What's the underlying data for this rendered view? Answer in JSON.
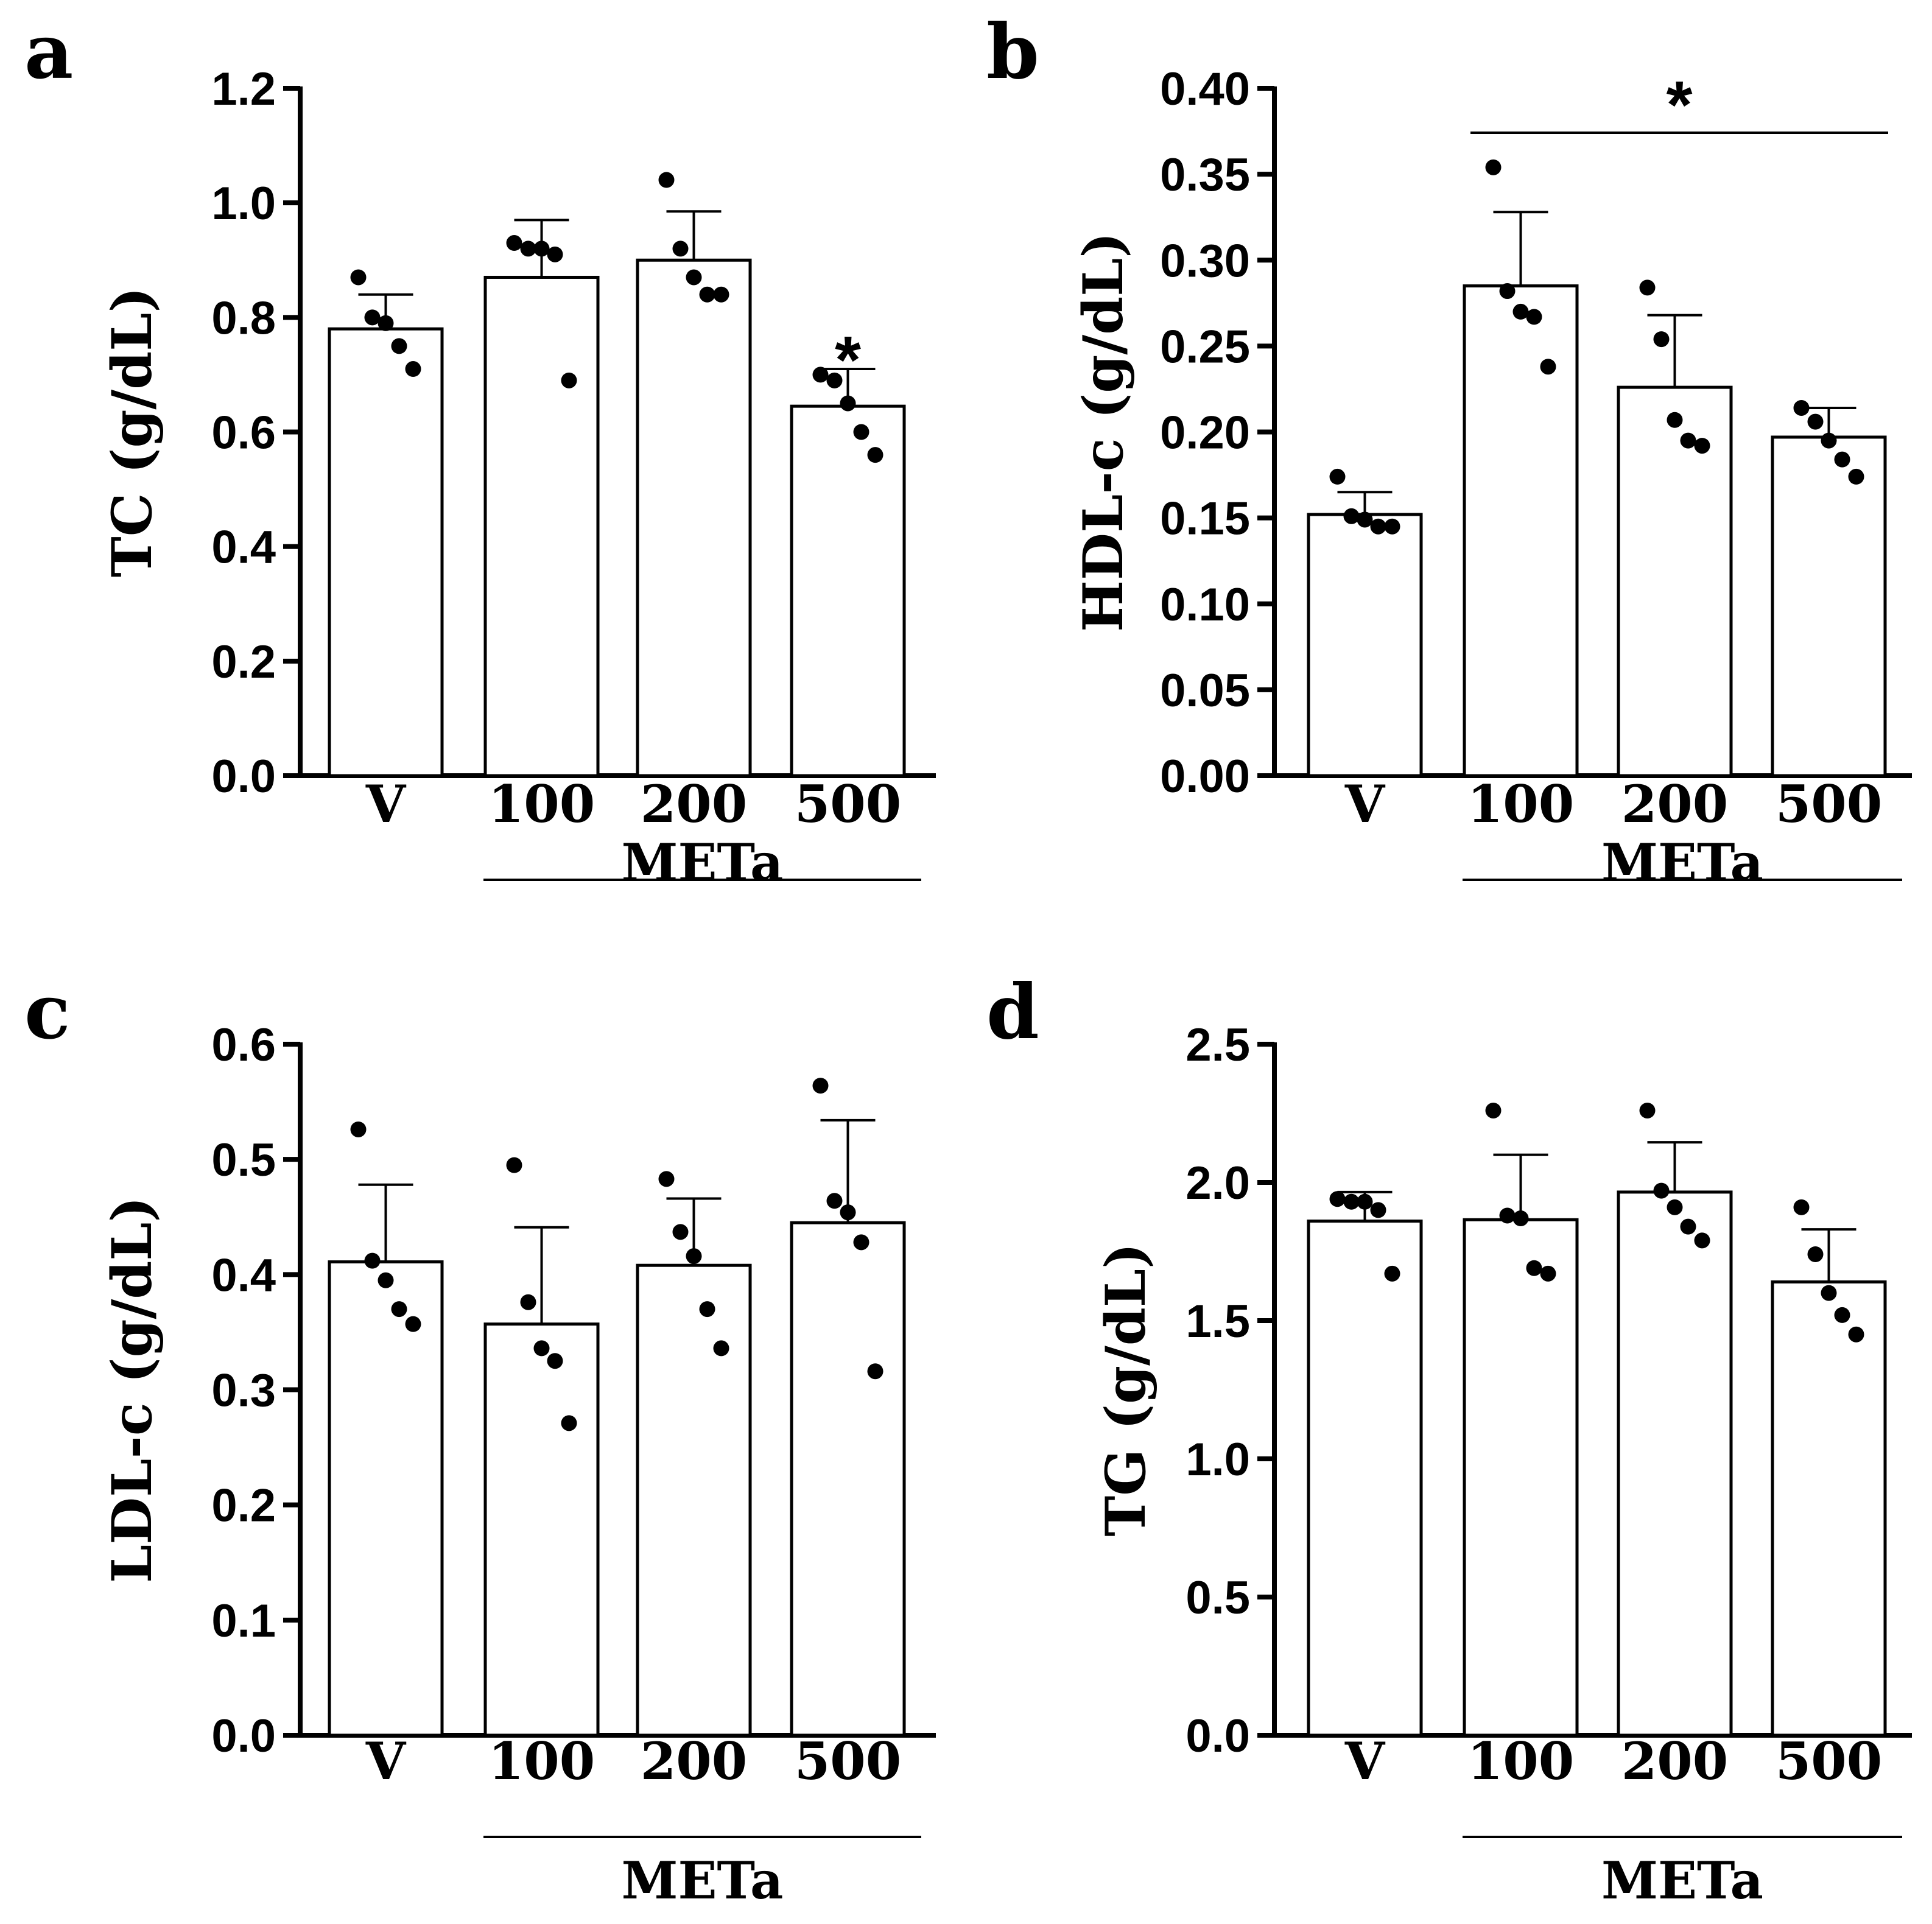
{
  "chart_data": [
    {
      "panel": "a",
      "type": "bar",
      "ylabel": "TC (g/dL)",
      "ylim": [
        0,
        1.2
      ],
      "yticks": [
        0.0,
        0.2,
        0.4,
        0.6,
        0.8,
        1.0,
        1.2
      ],
      "ytick_labels": [
        "0.0",
        "0.2",
        "0.4",
        "0.6",
        "0.8",
        "1.0",
        "1.2"
      ],
      "categories": [
        "V",
        "100",
        "200",
        "500"
      ],
      "group_label": "METa",
      "values": [
        0.78,
        0.87,
        0.9,
        0.645
      ],
      "error": [
        0.06,
        0.1,
        0.085,
        0.065
      ],
      "points": [
        [
          0.87,
          0.8,
          0.79,
          0.75,
          0.71
        ],
        [
          0.93,
          0.92,
          0.92,
          0.91,
          0.69
        ],
        [
          1.04,
          0.92,
          0.87,
          0.84,
          0.84
        ],
        [
          0.7,
          0.69,
          0.65,
          0.6,
          0.56
        ]
      ],
      "annotations": [
        {
          "text": "*",
          "category": 3
        }
      ]
    },
    {
      "panel": "b",
      "type": "bar",
      "ylabel": "HDL-c (g/dL)",
      "ylim": [
        0,
        0.4
      ],
      "yticks": [
        0.0,
        0.05,
        0.1,
        0.15,
        0.2,
        0.25,
        0.3,
        0.35,
        0.4
      ],
      "ytick_labels": [
        "0.00",
        "0.05",
        "0.10",
        "0.15",
        "0.20",
        "0.25",
        "0.30",
        "0.35",
        "0.40"
      ],
      "categories": [
        "V",
        "100",
        "200",
        "500"
      ],
      "group_label": "METa",
      "values": [
        0.152,
        0.285,
        0.226,
        0.197
      ],
      "error": [
        0.013,
        0.043,
        0.042,
        0.017
      ],
      "points": [
        [
          0.174,
          0.151,
          0.149,
          0.145,
          0.145
        ],
        [
          0.354,
          0.282,
          0.27,
          0.267,
          0.238
        ],
        [
          0.284,
          0.254,
          0.207,
          0.195,
          0.192
        ],
        [
          0.214,
          0.206,
          0.195,
          0.184,
          0.174
        ]
      ],
      "annotations": [
        {
          "text": "*",
          "span": [
            1,
            3
          ]
        }
      ]
    },
    {
      "panel": "c",
      "type": "bar",
      "ylabel": "LDL-c (g/dL)",
      "ylim": [
        0,
        0.6
      ],
      "yticks": [
        0.0,
        0.1,
        0.2,
        0.3,
        0.4,
        0.5,
        0.6
      ],
      "ytick_labels": [
        "0.0",
        "0.1",
        "0.2",
        "0.3",
        "0.4",
        "0.5",
        "0.6"
      ],
      "categories": [
        "V",
        "100",
        "200",
        "500"
      ],
      "group_label": "METa",
      "values": [
        0.411,
        0.357,
        0.408,
        0.445
      ],
      "error": [
        0.067,
        0.084,
        0.058,
        0.089
      ],
      "points": [
        [
          0.526,
          0.412,
          0.395,
          0.37,
          0.357
        ],
        [
          0.495,
          0.376,
          0.336,
          0.325,
          0.271
        ],
        [
          0.483,
          0.437,
          0.416,
          0.37,
          0.336
        ],
        [
          0.564,
          0.464,
          0.454,
          0.428,
          0.316
        ]
      ],
      "annotations": []
    },
    {
      "panel": "d",
      "type": "bar",
      "ylabel": "TG (g/dL)",
      "ylim": [
        0,
        2.5
      ],
      "yticks": [
        0.0,
        0.5,
        1.0,
        1.5,
        2.0,
        2.5
      ],
      "ytick_labels": [
        "0.0",
        "0.5",
        "1.0",
        "1.5",
        "2.0",
        "2.5"
      ],
      "categories": [
        "V",
        "100",
        "200",
        "500"
      ],
      "group_label": "METa",
      "values": [
        1.86,
        1.865,
        1.965,
        1.64
      ],
      "error": [
        0.105,
        0.235,
        0.18,
        0.19
      ],
      "points": [
        [
          1.94,
          1.93,
          1.93,
          1.9,
          1.67
        ],
        [
          2.26,
          1.88,
          1.87,
          1.69,
          1.67
        ],
        [
          2.26,
          1.97,
          1.91,
          1.84,
          1.79
        ],
        [
          1.91,
          1.74,
          1.6,
          1.52,
          1.45
        ]
      ],
      "annotations": []
    }
  ],
  "panel_letters": [
    "a",
    "b",
    "c",
    "d"
  ]
}
